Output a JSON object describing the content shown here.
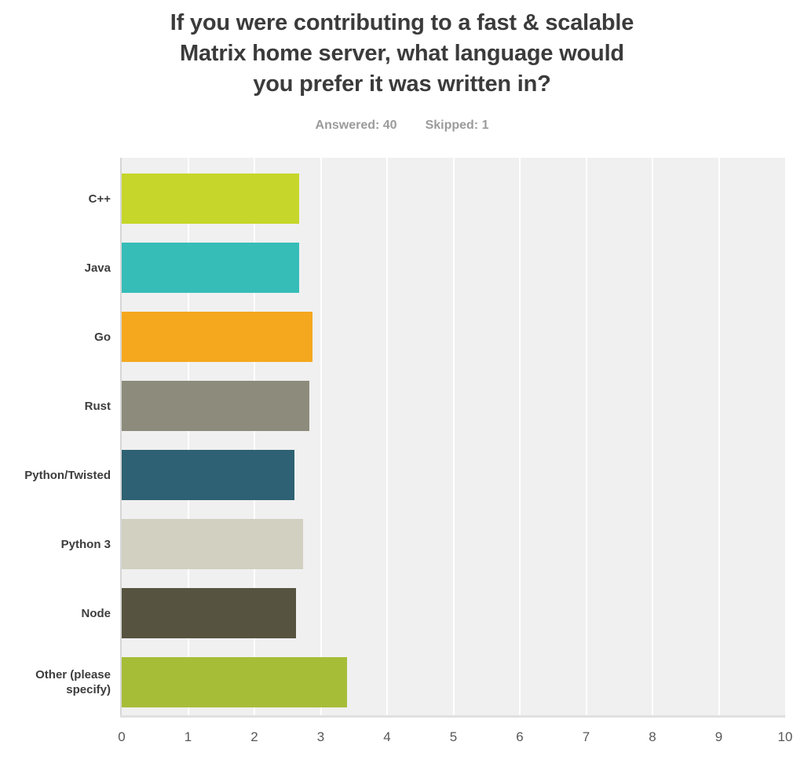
{
  "page": {
    "title_lines": [
      "If you were contributing to a fast & scalable",
      "Matrix home server, what language would",
      "you prefer it was written in?"
    ],
    "answered": "Answered: 40",
    "skipped": "Skipped: 1"
  },
  "chart_data": {
    "type": "bar",
    "orientation": "horizontal",
    "title": "If you were contributing to a fast & scalable Matrix home server, what language would you prefer it was written in?",
    "answered_count": 40,
    "skipped_count": 1,
    "categories": [
      "C++",
      "Java",
      "Go",
      "Rust",
      "Python/Twisted",
      "Python 3",
      "Node",
      "Other (please specify)"
    ],
    "values": [
      2.68,
      2.68,
      2.87,
      2.83,
      2.6,
      2.73,
      2.63,
      3.4
    ],
    "bar_colors": [
      "#c6d62b",
      "#36bdb8",
      "#f5a81e",
      "#8d8c7c",
      "#2e6173",
      "#d1d0c1",
      "#565440",
      "#a6bd37"
    ],
    "xlabel": "",
    "ylabel": "",
    "xlim": [
      0,
      10
    ],
    "x_ticks": [
      0,
      1,
      2,
      3,
      4,
      5,
      6,
      7,
      8,
      9,
      10
    ],
    "grid": true,
    "gridline_color": "#ffffff",
    "plot_background": "#f0f0f0",
    "legend": "none"
  }
}
